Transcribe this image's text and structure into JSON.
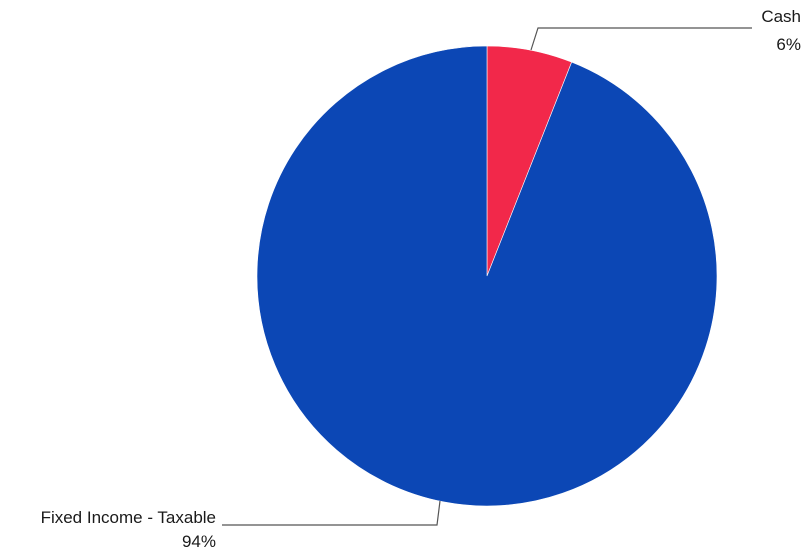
{
  "chart_data": {
    "type": "pie",
    "title": "",
    "slices": [
      {
        "label": "Cash",
        "value": 6,
        "value_label": "6%",
        "color": "#f2284a"
      },
      {
        "label": "Fixed Income - Taxable",
        "value": 94,
        "value_label": "94%",
        "color": "#0c47b5"
      }
    ],
    "start_angle_deg": 0,
    "direction": "clockwise"
  }
}
